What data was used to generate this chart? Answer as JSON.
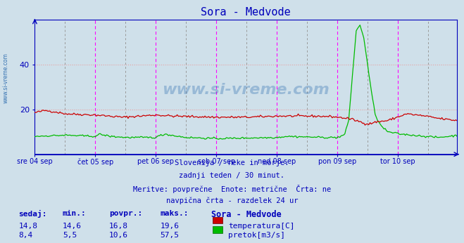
{
  "title": "Sora - Medvode",
  "background_color": "#cfe0ea",
  "plot_bg_color": "#cfe0ea",
  "temp_color": "#cc0000",
  "flow_color": "#00bb00",
  "grid_h_color": "#e8a0a0",
  "vline_magenta": "#ff00ff",
  "vline_gray": "#999999",
  "axis_color": "#0000bb",
  "watermark_color": "#1a5fa8",
  "subtitle_lines": [
    "Slovenija / reke in morje.",
    "zadnji teden / 30 minut.",
    "Meritve: povprečne  Enote: metrične  Črta: ne",
    "navpična črta - razdelek 24 ur"
  ],
  "table_header": [
    "sedaj:",
    "min.:",
    "povpr.:",
    "maks.:",
    "Sora - Medvode"
  ],
  "table_row1": [
    "14,8",
    "14,6",
    "16,8",
    "19,6"
  ],
  "table_row2": [
    "8,4",
    "5,5",
    "10,6",
    "57,5"
  ],
  "legend_labels": [
    "temperatura[C]",
    "pretok[m3/s]"
  ],
  "n_points": 336,
  "day_labels": [
    "sre 04 sep",
    "čet 05 sep",
    "pet 06 sep",
    "sob 07 sep",
    "ned 08 sep",
    "pon 09 sep",
    "tor 10 sep"
  ],
  "day_positions": [
    0,
    48,
    96,
    144,
    192,
    240,
    288
  ],
  "noon_positions": [
    24,
    72,
    120,
    168,
    216,
    264,
    312
  ],
  "ylim_max": 60,
  "yticks": [
    20,
    40
  ],
  "side_label": "www.si-vreme.com"
}
